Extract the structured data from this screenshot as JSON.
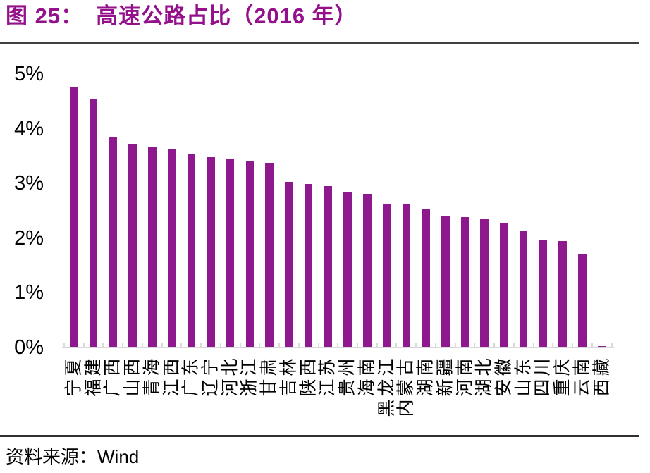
{
  "title": {
    "prefix": "图 25：",
    "text": "高速公路占比（2016 年）"
  },
  "source": {
    "label": "资料来源：",
    "value": "Wind"
  },
  "colors": {
    "bar": "#8E188E",
    "title": "#94118C",
    "axis": "#D9D9D9",
    "text": "#000000",
    "divider_top": "#404040",
    "divider_bottom": "#303030"
  },
  "chart_data": {
    "type": "bar",
    "title": "高速公路占比（2016 年）",
    "xlabel": "",
    "ylabel": "",
    "ylim": [
      0,
      5
    ],
    "yticks": [
      "0%",
      "1%",
      "2%",
      "3%",
      "4%",
      "5%"
    ],
    "ytick_values": [
      0,
      1,
      2,
      3,
      4,
      5
    ],
    "grid": false,
    "legend": "none",
    "bar_color": "#8E188E",
    "categories": [
      "宁夏",
      "福建",
      "广西",
      "山西",
      "青海",
      "江西",
      "广东",
      "辽宁",
      "河北",
      "浙江",
      "甘肃",
      "吉林",
      "陕西",
      "江苏",
      "贵州",
      "海南",
      "黑龙江",
      "内蒙古",
      "湖南",
      "新疆",
      "河南",
      "湖北",
      "安徽",
      "山东",
      "四川",
      "重庆",
      "云南",
      "西藏"
    ],
    "values": [
      4.77,
      4.55,
      3.84,
      3.72,
      3.67,
      3.64,
      3.53,
      3.48,
      3.46,
      3.41,
      3.37,
      3.03,
      2.99,
      2.95,
      2.83,
      2.81,
      2.63,
      2.62,
      2.53,
      2.4,
      2.38,
      2.35,
      2.28,
      2.12,
      1.97,
      1.94,
      1.7,
      0.02
    ]
  }
}
